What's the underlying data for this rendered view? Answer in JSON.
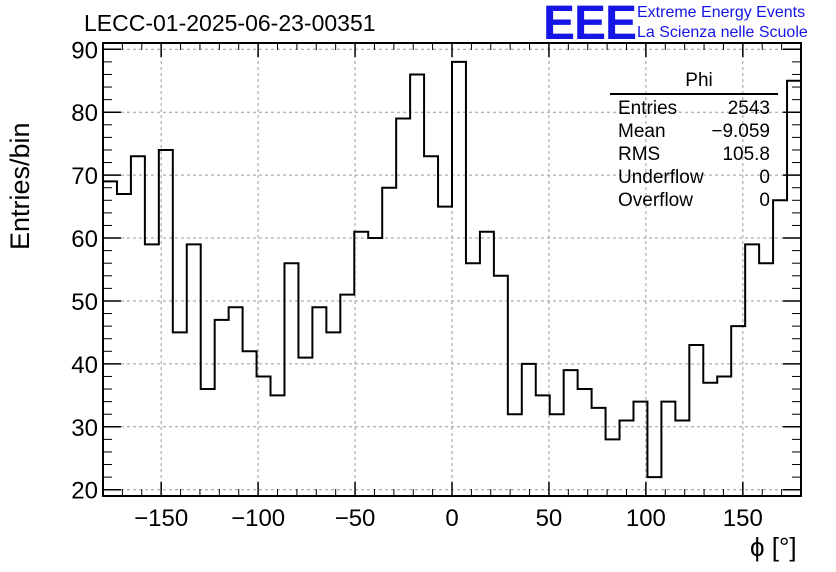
{
  "title": "LECC-01-2025-06-23-00351",
  "logo": {
    "mark": "EEE",
    "line1": "Extreme Energy Events",
    "line2": "La Scienza nelle Scuole",
    "color": "#1515e6"
  },
  "stats_box": {
    "name": "Phi",
    "rows": [
      {
        "label": "Entries",
        "value": "2543"
      },
      {
        "label": "Mean",
        "value": "−9.059"
      },
      {
        "label": "RMS",
        "value": "105.8"
      },
      {
        "label": "Underflow",
        "value": "0"
      },
      {
        "label": "Overflow",
        "value": "0"
      }
    ]
  },
  "chart_data": {
    "type": "bar",
    "style": "step-histogram",
    "xlabel": "ϕ [°]",
    "ylabel": "Entries/bin",
    "xlim": [
      -180,
      180
    ],
    "ylim": [
      19,
      91
    ],
    "bin_width": 7.2,
    "xticks": [
      -150,
      -100,
      -50,
      0,
      50,
      100,
      150
    ],
    "xtick_labels": [
      "−150",
      "−100",
      "−50",
      "0",
      "50",
      "100",
      "150"
    ],
    "yticks": [
      20,
      30,
      40,
      50,
      60,
      70,
      80,
      90
    ],
    "grid": true,
    "values": [
      69,
      67,
      73,
      59,
      74,
      45,
      59,
      36,
      47,
      49,
      42,
      38,
      35,
      56,
      41,
      49,
      45,
      51,
      61,
      60,
      68,
      79,
      86,
      73,
      65,
      88,
      56,
      61,
      54,
      32,
      40,
      35,
      32,
      39,
      36,
      33,
      28,
      31,
      34,
      22,
      34,
      31,
      43,
      37,
      38,
      46,
      59,
      56,
      66,
      85
    ]
  }
}
